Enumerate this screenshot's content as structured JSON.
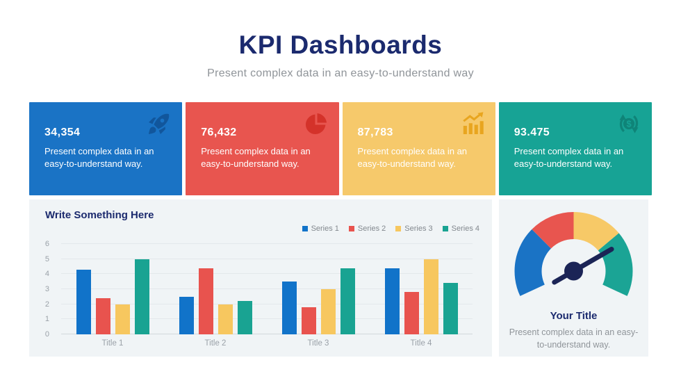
{
  "header": {
    "title": "KPI Dashboards",
    "subtitle": "Present complex data in an easy-to-understand way"
  },
  "kpi_cards": [
    {
      "value": "34,354",
      "description": "Present complex data in an easy-to-understand way.",
      "color": "#1a73c5",
      "icon_color": "#11569c",
      "icon": "rocket-icon"
    },
    {
      "value": "76,432",
      "description": "Present complex data in an easy-to-understand way.",
      "color": "#e8554f",
      "icon_color": "#d4322a",
      "icon": "pie-chart-icon"
    },
    {
      "value": "87,783",
      "description": "Present complex data in an easy-to-understand way.",
      "color": "#f6c96b",
      "icon_color": "#e8a51f",
      "icon": "growth-chart-icon"
    },
    {
      "value": "93.475",
      "description": "Present complex data in an easy-to-understand way.",
      "color": "#17a395",
      "icon_color": "#0f8478",
      "icon": "money-exchange-icon"
    }
  ],
  "chart_data": [
    {
      "type": "bar",
      "title": "Write Something Here",
      "categories": [
        "Title 1",
        "Title 2",
        "Title 3",
        "Title 4"
      ],
      "series": [
        {
          "name": "Series 1",
          "color": "#1173c9",
          "values": [
            4.3,
            2.5,
            3.5,
            4.4
          ]
        },
        {
          "name": "Series 2",
          "color": "#e8534e",
          "values": [
            2.4,
            4.4,
            1.8,
            2.8
          ]
        },
        {
          "name": "Series 3",
          "color": "#f7c75f",
          "values": [
            2.0,
            2.0,
            3.0,
            5.0
          ]
        },
        {
          "name": "Series 4",
          "color": "#19a392",
          "values": [
            5.0,
            2.2,
            4.4,
            3.4
          ]
        }
      ],
      "ylim": [
        0,
        6
      ],
      "yticks": [
        0,
        1,
        2,
        3,
        4,
        5,
        6
      ],
      "grid": true,
      "legend_position": "top-right"
    },
    {
      "type": "gauge",
      "title": "Your Title",
      "description": "Present complex data in an easy-to-understand way.",
      "segments": [
        {
          "label": "segment-1",
          "color": "#1a73c5",
          "start_deg": 205,
          "end_deg": 135
        },
        {
          "label": "segment-2",
          "color": "#e8554f",
          "start_deg": 135,
          "end_deg": 90
        },
        {
          "label": "segment-3",
          "color": "#f7c967",
          "start_deg": 90,
          "end_deg": 40
        },
        {
          "label": "segment-4",
          "color": "#1ba495",
          "start_deg": 40,
          "end_deg": -25
        }
      ],
      "needle_deg": 30,
      "needle_color": "#1b2456"
    }
  ]
}
